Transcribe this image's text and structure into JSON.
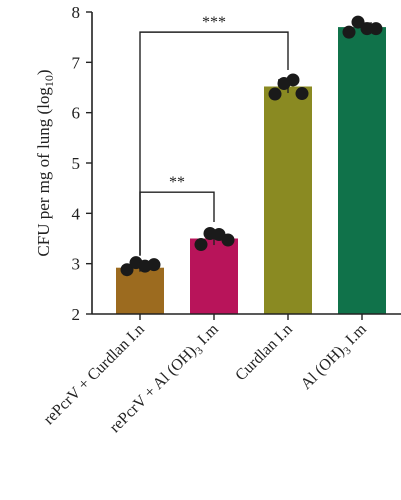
{
  "chart_data": {
    "type": "bar",
    "ylabel": "CFU per mg of lung (log",
    "ylabel_sub": "10",
    "ylabel_close": ")",
    "ylim": [
      2,
      8
    ],
    "yticks": [
      2,
      3,
      4,
      5,
      6,
      7,
      8
    ],
    "categories": [
      {
        "label": "rePcrV + Curdlan I.n",
        "sub": "",
        "tail": ""
      },
      {
        "label": "rePcrV + Al (OH)",
        "sub": "3",
        "tail": " I.m"
      },
      {
        "label": "Curdlan I.n",
        "sub": "",
        "tail": ""
      },
      {
        "label": "Al (OH)",
        "sub": "3",
        "tail": " I.m"
      }
    ],
    "values": [
      2.92,
      3.5,
      6.52,
      7.7
    ],
    "errors": [
      0.08,
      0.13,
      0.13,
      0.08
    ],
    "points": [
      [
        2.88,
        3.02,
        2.95,
        2.98
      ],
      [
        3.38,
        3.6,
        3.58,
        3.47
      ],
      [
        6.37,
        6.58,
        6.65,
        6.38
      ],
      [
        7.6,
        7.8,
        7.67,
        7.67
      ]
    ],
    "colors": [
      "#9c6b1f",
      "#b8145a",
      "#8a8a22",
      "#10724a"
    ],
    "significance": [
      {
        "from": 0,
        "to": 1,
        "label": "**",
        "y": 4.42
      },
      {
        "from": 0,
        "to": 2,
        "label": "***",
        "y": 7.6
      }
    ]
  }
}
